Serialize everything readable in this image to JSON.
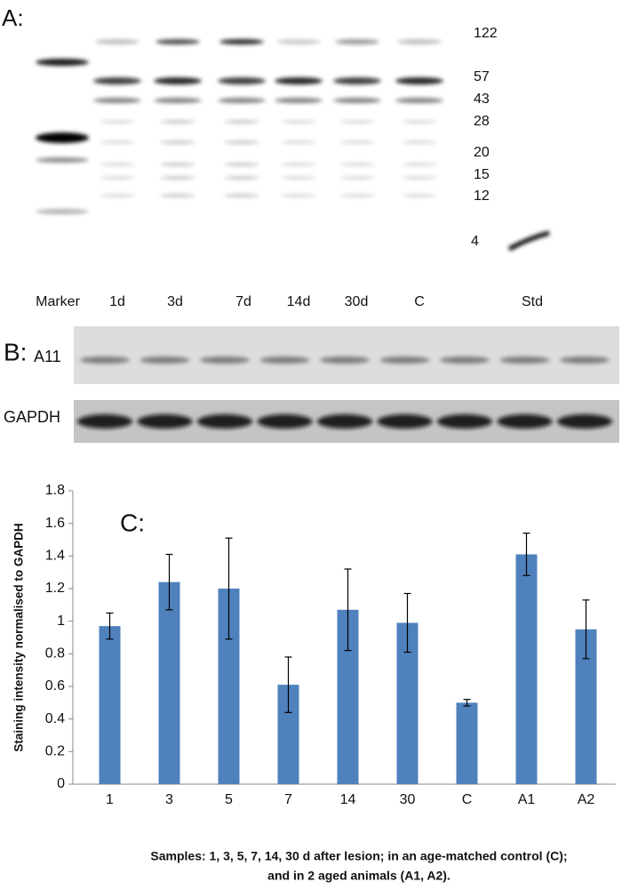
{
  "panel_a": {
    "label": "A:",
    "markers": [
      "122",
      "57",
      "43",
      "28",
      "20",
      "15",
      "12",
      "4"
    ],
    "lanes": [
      "Marker",
      "1d",
      "3d",
      "7d",
      "14d",
      "30d",
      "C",
      "Std"
    ]
  },
  "panel_b": {
    "label": "B:",
    "rows": [
      "A11",
      "GAPDH"
    ]
  },
  "chart_data": {
    "type": "bar",
    "annotation": "C:",
    "y_label": "Staining intensity  normalised to GAPDH",
    "categories": [
      "1",
      "3",
      "5",
      "7",
      "14",
      "30",
      "C",
      "A1",
      "A2"
    ],
    "series": [
      {
        "color": "#4f81bd",
        "values": [
          0.97,
          1.24,
          1.2,
          0.61,
          1.07,
          0.99,
          0.5,
          1.41,
          0.95
        ],
        "errors": [
          0.08,
          0.17,
          0.31,
          0.17,
          0.25,
          0.18,
          0.02,
          0.13,
          0.18
        ]
      }
    ],
    "ylim": [
      0,
      1.8
    ],
    "yticks": [
      0,
      0.2,
      0.4,
      0.6,
      0.8,
      1,
      1.2,
      1.4,
      1.6,
      1.8
    ]
  },
  "caption": [
    "Samples: 1, 3, 5, 7, 14, 30 d after lesion; in an age-matched control (C);",
    "and in  2 aged animals (A1, A2)."
  ]
}
